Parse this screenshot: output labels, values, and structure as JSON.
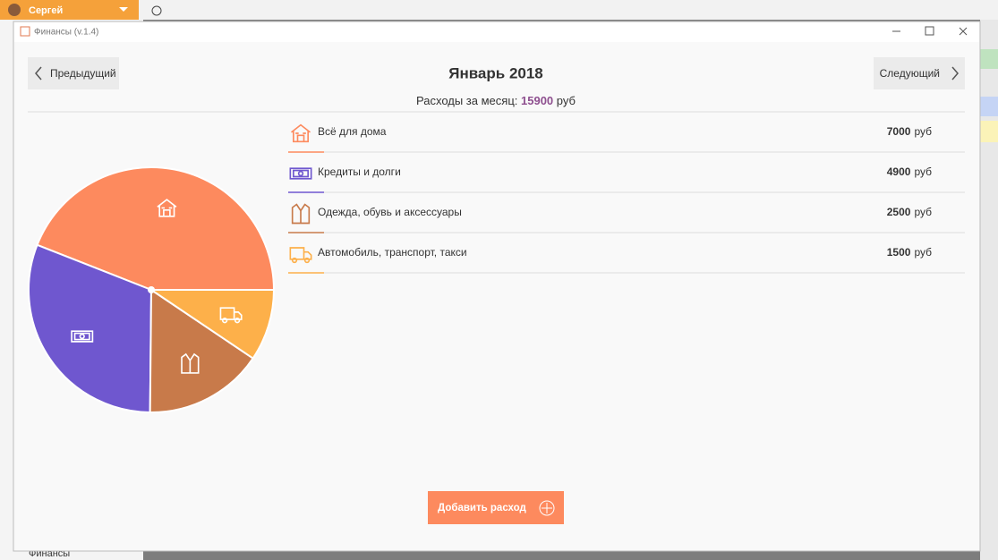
{
  "user": {
    "name": "Сергей"
  },
  "window": {
    "title": "Финансы (v.1.4)"
  },
  "nav": {
    "prev": "Предыдущий",
    "next": "Следующий"
  },
  "summary": {
    "label": "Расходы за месяц:",
    "total": 15900,
    "unit": "руб"
  },
  "chart_data": {
    "type": "pie",
    "title": "Январь 2018",
    "categories": [
      "Всё для дома",
      "Кредиты и долги",
      "Одежда, обувь и аксессуары",
      "Автомобиль, транспорт, такси"
    ],
    "values": [
      7000,
      4900,
      2500,
      1500
    ],
    "colors": [
      "#fd8a5e",
      "#6f57cf",
      "#c87a4a",
      "#fdb04a"
    ]
  },
  "actions": {
    "add": "Добавить расход"
  },
  "sidebar": {
    "item": "Финансы"
  }
}
